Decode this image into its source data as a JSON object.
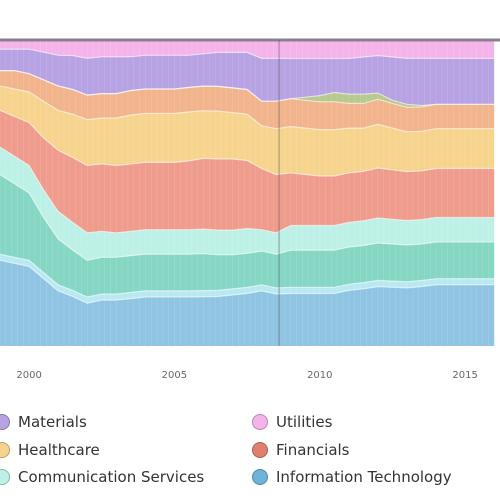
{
  "chart_data": {
    "type": "area",
    "stacking": "percent",
    "x_ticks": [
      "2000",
      "2005",
      "2010",
      "2015"
    ],
    "xlim": [
      1999.0,
      2016.2
    ],
    "ylim": [
      0,
      100
    ],
    "grid": false,
    "legend_position": "bottom",
    "x": [
      1999.0,
      1999.5,
      2000.0,
      2000.5,
      2001.0,
      2001.5,
      2002.0,
      2002.5,
      2003.0,
      2003.5,
      2004.0,
      2004.5,
      2005.0,
      2005.5,
      2006.0,
      2006.5,
      2007.0,
      2007.5,
      2008.0,
      2008.5,
      2009.0,
      2009.5,
      2010.0,
      2010.5,
      2011.0,
      2011.5,
      2012.0,
      2012.5,
      2013.0,
      2013.5,
      2014.0,
      2014.5,
      2015.0,
      2015.5,
      2016.0
    ],
    "series": [
      {
        "name": "Information Technology",
        "color": "#8fc4e3",
        "values": [
          28,
          27,
          26,
          22,
          18,
          16,
          14,
          15,
          15,
          15.5,
          16,
          16,
          16,
          16,
          16,
          16,
          16.5,
          17,
          18,
          17,
          17,
          17,
          17,
          17,
          18,
          18.5,
          19,
          19,
          19,
          19.5,
          20,
          20,
          20,
          20,
          20
        ]
      },
      {
        "name": "",
        "color": "#b8e8f2",
        "values": [
          2,
          2,
          2,
          2,
          2,
          2,
          2,
          2,
          2,
          2,
          2,
          2,
          2,
          2,
          2,
          2,
          2,
          2,
          2,
          2,
          2,
          2,
          2,
          2,
          2,
          2,
          2,
          2,
          2,
          2,
          2,
          2,
          2,
          2,
          2
        ]
      },
      {
        "name": "",
        "color": "#86d6c4",
        "values": [
          26,
          24,
          22,
          18,
          15,
          13,
          12,
          12,
          12,
          12,
          12,
          12,
          12,
          12,
          12,
          11.5,
          11,
          11,
          11,
          11,
          12,
          12,
          12,
          12,
          12,
          12,
          12,
          12,
          12,
          12,
          12,
          12,
          12,
          12,
          12
        ]
      },
      {
        "name": "Communication Services",
        "color": "#bdf0e6",
        "values": [
          9,
          9,
          9,
          9,
          9,
          9,
          9,
          8.5,
          8,
          8,
          8,
          8,
          8,
          8,
          8,
          8,
          8,
          8,
          7,
          7,
          8,
          8,
          8,
          8,
          8,
          8,
          8,
          8,
          8,
          8,
          8,
          8,
          8,
          8,
          8
        ]
      },
      {
        "name": "Financials",
        "color": "#ef9c8c",
        "values": [
          12,
          13,
          14,
          17,
          20,
          21,
          22,
          22,
          22,
          22,
          22,
          22,
          22,
          22.5,
          23,
          23,
          23,
          22,
          20,
          19,
          17,
          16.5,
          16,
          16,
          16,
          16,
          16,
          16,
          16,
          16,
          16,
          16,
          16,
          16,
          16
        ]
      },
      {
        "name": "Healthcare",
        "color": "#f6d48e",
        "values": [
          8,
          9,
          10,
          12,
          13,
          14,
          15,
          15,
          15.5,
          16,
          16,
          16,
          16,
          16,
          15.5,
          15.5,
          15,
          15,
          14,
          15,
          15,
          15,
          15,
          15,
          14.5,
          14,
          14,
          13.5,
          13,
          13,
          13,
          13,
          13,
          13,
          13
        ]
      },
      {
        "name": "",
        "color": "#f2b48c",
        "values": [
          5,
          6,
          6,
          7,
          8,
          8,
          8,
          8,
          8,
          8,
          8,
          8,
          8,
          8,
          8,
          8,
          8,
          8,
          8,
          9,
          9,
          9,
          9,
          9,
          8,
          8,
          8,
          8,
          8,
          8,
          8,
          8,
          8,
          8,
          8
        ]
      },
      {
        "name": "",
        "color": "#b7c98e",
        "values": [
          0,
          0,
          0,
          0,
          0,
          0,
          0,
          0,
          0,
          0,
          0,
          0,
          0,
          0,
          0,
          0,
          0,
          0,
          0,
          0,
          0,
          1,
          2,
          3,
          3,
          3,
          2,
          1,
          1,
          0.5,
          0,
          0,
          0,
          0,
          0
        ]
      },
      {
        "name": "Materials",
        "color": "#b7a2e3",
        "values": [
          7,
          7,
          8,
          9,
          10,
          11,
          12,
          12,
          12,
          11,
          11,
          11,
          11,
          10.5,
          10.5,
          11,
          11.5,
          12,
          14,
          14,
          13,
          12.5,
          12,
          11,
          11.5,
          12,
          12,
          14,
          15,
          15.5,
          15,
          15,
          15,
          15,
          15
        ]
      },
      {
        "name": "Utilities",
        "color": "#f4b4ea",
        "values": [
          3,
          3,
          3,
          4,
          5,
          5,
          6,
          5.5,
          5.5,
          5.5,
          5,
          5,
          5,
          5,
          4.5,
          4,
          4,
          4,
          6,
          6,
          6,
          6,
          6,
          6,
          6,
          5.5,
          5,
          5.5,
          6,
          6,
          6,
          6,
          6,
          6,
          6
        ]
      }
    ],
    "legend": [
      {
        "label": "Materials",
        "color": "#b7a2e3"
      },
      {
        "label": "Utilities",
        "color": "#f4b4ea"
      },
      {
        "label": "Healthcare",
        "color": "#f6d48e"
      },
      {
        "label": "Financials",
        "color": "#e0806c"
      },
      {
        "label": "Communication Services",
        "color": "#bdf0e6"
      },
      {
        "label": "Information Technology",
        "color": "#6fb3d8"
      }
    ]
  }
}
